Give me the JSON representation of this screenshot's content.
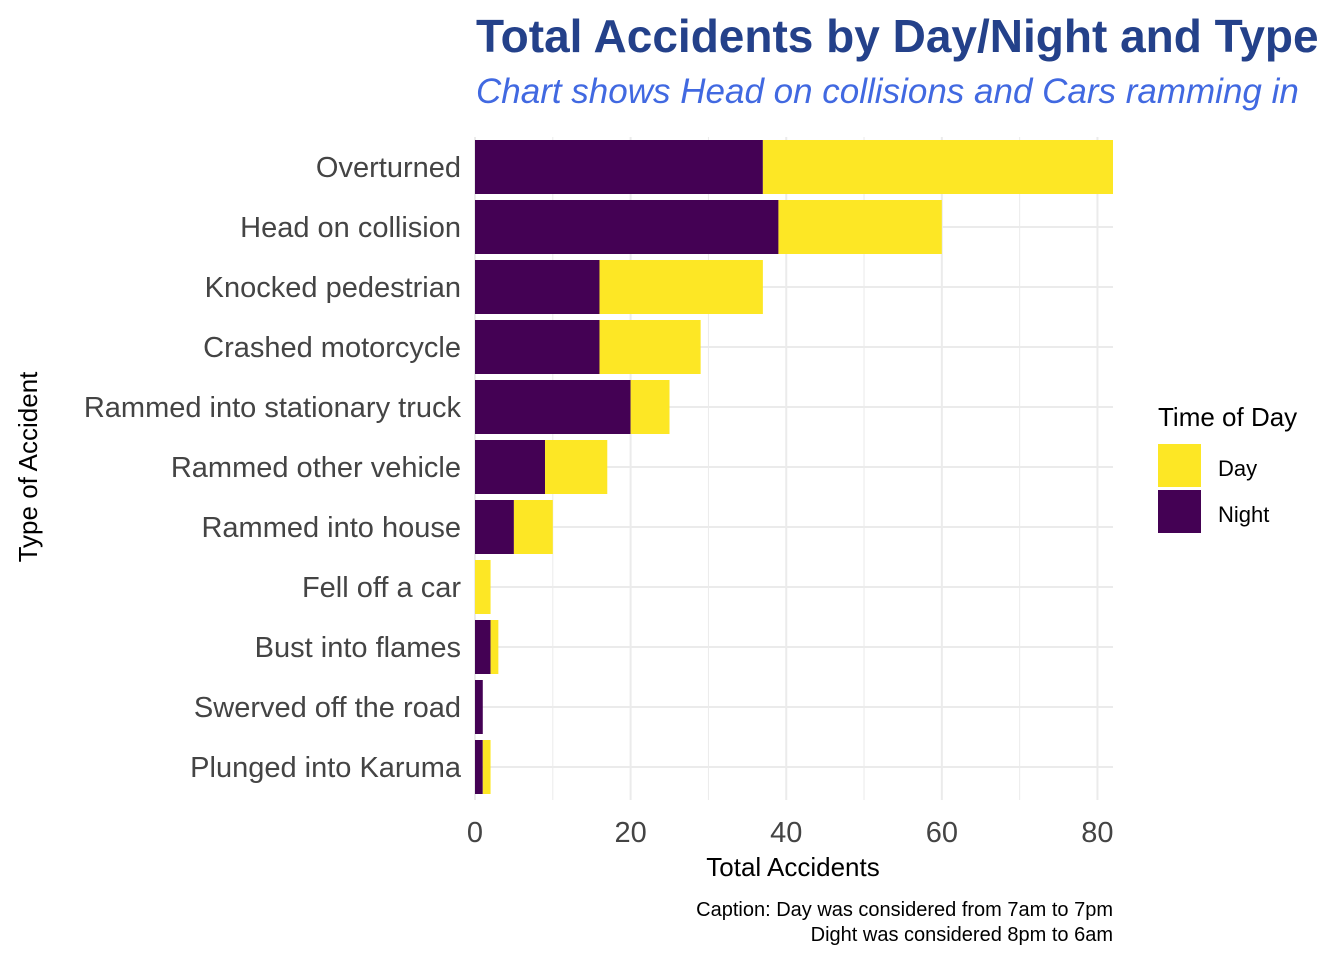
{
  "colors": {
    "title": "#24418a",
    "subtitle": "#4169e1",
    "day": "#fde725",
    "night": "#440154",
    "grid": "#ebebeb"
  },
  "chart_data": {
    "type": "bar",
    "orientation": "horizontal",
    "stacked": true,
    "title": "Total Accidents by Day/Night and Type",
    "subtitle": "Chart shows Head on collisions and Cars ramming in",
    "xlabel": "Total Accidents",
    "ylabel": "Type of Accident",
    "xlim": [
      0,
      82
    ],
    "xticks": [
      0,
      20,
      40,
      60,
      80
    ],
    "grid": true,
    "legend": {
      "title": "Time of Day",
      "position": "right",
      "entries": [
        "Day",
        "Night"
      ]
    },
    "categories": [
      "Overturned",
      "Head on collision",
      "Knocked pedestrian",
      "Crashed motorcycle",
      "Rammed into stationary truck",
      "Rammed other vehicle",
      "Rammed into house",
      "Fell off a car",
      "Bust into flames",
      "Swerved off the road",
      "Plunged into Karuma"
    ],
    "series": [
      {
        "name": "Night",
        "values": [
          37,
          39,
          16,
          16,
          20,
          9,
          5,
          0,
          2,
          1,
          1
        ]
      },
      {
        "name": "Day",
        "values": [
          45,
          21,
          21,
          13,
          5,
          8,
          5,
          2,
          1,
          0,
          1
        ]
      }
    ],
    "caption": [
      "Caption: Day was considered from 7am to 7pm",
      "Dight was considered 8pm to 6am"
    ]
  }
}
